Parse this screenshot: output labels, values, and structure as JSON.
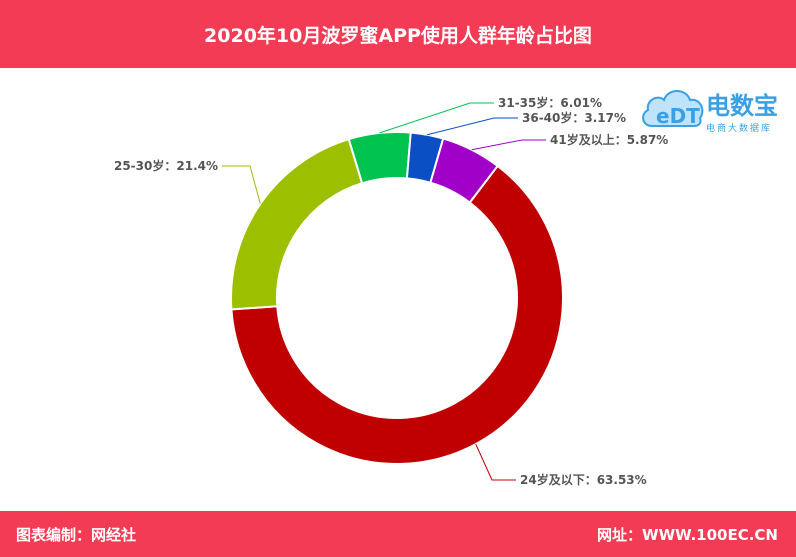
{
  "header": {
    "title": "2020年10月波罗蜜APP使用人群年龄占比图"
  },
  "footer": {
    "left": "图表编制：网经社",
    "right": "网址：WWW.100EC.CN"
  },
  "logo": {
    "mark": "eDT",
    "name": "电数宝",
    "tagline": "电商大数据库"
  },
  "chart_data": {
    "type": "pie",
    "donut": true,
    "categories": [
      "24岁及以下",
      "25-30岁",
      "31-35岁",
      "36-40岁",
      "41岁及以上"
    ],
    "values": [
      63.53,
      21.4,
      6.01,
      3.17,
      5.87
    ],
    "labels": [
      "24岁及以下：63.53%",
      "25-30岁：21.4%",
      "31-35岁：6.01%",
      "36-40岁：3.17%",
      "41岁及以上：5.87%"
    ],
    "colors": [
      "#c00000",
      "#9cbf00",
      "#00c24e",
      "#0a4fc4",
      "#a000c8"
    ]
  }
}
